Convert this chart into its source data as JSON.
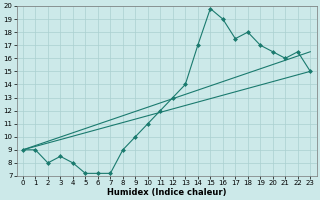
{
  "title": "",
  "xlabel": "Humidex (Indice chaleur)",
  "ylabel": "",
  "background_color": "#cce9e9",
  "grid_color": "#aad0d0",
  "line_color": "#1a7a6e",
  "xlim": [
    -0.5,
    23.5
  ],
  "ylim": [
    7,
    20
  ],
  "xticks": [
    0,
    1,
    2,
    3,
    4,
    5,
    6,
    7,
    8,
    9,
    10,
    11,
    12,
    13,
    14,
    15,
    16,
    17,
    18,
    19,
    20,
    21,
    22,
    23
  ],
  "yticks": [
    7,
    8,
    9,
    10,
    11,
    12,
    13,
    14,
    15,
    16,
    17,
    18,
    19,
    20
  ],
  "line1_x": [
    0,
    1,
    2,
    3,
    4,
    5,
    6,
    7,
    8,
    9,
    10,
    11,
    12,
    13,
    14,
    15,
    16,
    17,
    18,
    19,
    20,
    21,
    22,
    23
  ],
  "line1_y": [
    9,
    9,
    8,
    8.5,
    8,
    7.2,
    7.2,
    7.2,
    9,
    10,
    11,
    12,
    13,
    14,
    17,
    19.8,
    19,
    17.5,
    18,
    17,
    16.5,
    16,
    16.5,
    15
  ],
  "line2_x": [
    0,
    23
  ],
  "line2_y": [
    9,
    15
  ],
  "line3_x": [
    0,
    23
  ],
  "line3_y": [
    9,
    16.5
  ],
  "marker": "D",
  "markersize": 2.0,
  "linewidth": 0.8,
  "tick_fontsize": 5.0,
  "xlabel_fontsize": 6.0
}
